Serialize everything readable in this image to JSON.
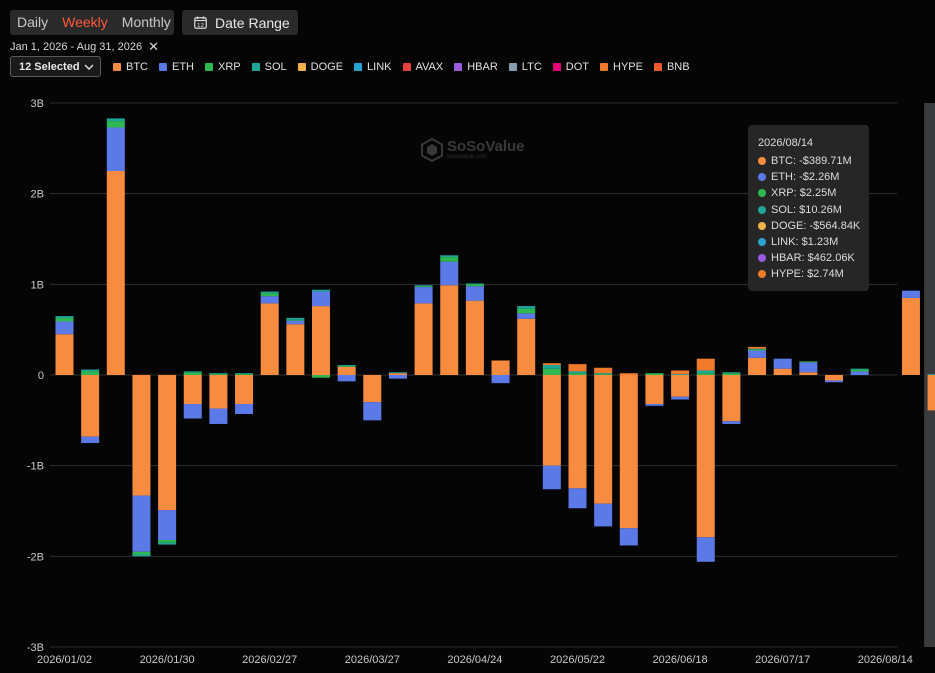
{
  "toolbar": {
    "periods": [
      "Daily",
      "Weekly",
      "Monthly"
    ],
    "active_period": "Weekly",
    "date_range_label": "Date Range",
    "date_range_text": "Jan 1, 2026 - Aug 31, 2026",
    "selection_label": "12 Selected",
    "accent_color": "#ff5a3c"
  },
  "watermark": {
    "name": "SoSoValue",
    "sub": "sosovalue.com"
  },
  "tooltip": {
    "date": "2026/08/14",
    "rows": [
      {
        "label": "BTC: -$389.71M",
        "color": "#f78c40"
      },
      {
        "label": "ETH: -$2.26M",
        "color": "#5b7ae8"
      },
      {
        "label": "XRP: $2.25M",
        "color": "#2fb84f"
      },
      {
        "label": "SOL: $10.26M",
        "color": "#1fa79a"
      },
      {
        "label": "DOGE: -$564.84K",
        "color": "#f2b24a"
      },
      {
        "label": "LINK: $1.23M",
        "color": "#27a3d0"
      },
      {
        "label": "HBAR: $462.06K",
        "color": "#9b59e0"
      },
      {
        "label": "HYPE: $2.74M",
        "color": "#f07a2a"
      }
    ]
  },
  "chart_data": {
    "type": "bar",
    "stacked": true,
    "ylim": [
      -3000000000,
      3000000000
    ],
    "yticks": [
      3000000000,
      2000000000,
      1000000000,
      0,
      -1000000000,
      -2000000000,
      -3000000000
    ],
    "ytick_labels": [
      "3B",
      "2B",
      "1B",
      "0",
      "-1B",
      "-2B",
      "-3B"
    ],
    "xtick_labels": [
      "2026/01/02",
      "2026/01/30",
      "2026/02/27",
      "2026/03/27",
      "2026/04/24",
      "2026/05/22",
      "2026/06/18",
      "2026/07/17",
      "2026/08/14"
    ],
    "xtick_every": 4,
    "highlighted_index": 34,
    "grid": true,
    "legend_position": "top-left",
    "legend": [
      {
        "name": "BTC",
        "color": "#f78c40"
      },
      {
        "name": "ETH",
        "color": "#5b7ae8"
      },
      {
        "name": "XRP",
        "color": "#2fb84f"
      },
      {
        "name": "SOL",
        "color": "#1fa79a"
      },
      {
        "name": "DOGE",
        "color": "#f2b24a"
      },
      {
        "name": "LINK",
        "color": "#27a3d0"
      },
      {
        "name": "AVAX",
        "color": "#e84142"
      },
      {
        "name": "HBAR",
        "color": "#9b59e0"
      },
      {
        "name": "LTC",
        "color": "#8a9bb0"
      },
      {
        "name": "DOT",
        "color": "#e6007a"
      },
      {
        "name": "HYPE",
        "color": "#f07a2a"
      },
      {
        "name": "BNB",
        "color": "#f35b2a"
      }
    ],
    "series": [
      {
        "name": "BTC",
        "color": "#f78c40",
        "values": [
          450000000.0,
          -680000000.0,
          2250000000.0,
          -1330000000.0,
          -1490000000.0,
          -320000000.0,
          -370000000.0,
          -320000000.0,
          790000000.0,
          560000000.0,
          760000000.0,
          90000000.0,
          -300000000.0,
          20000000.0,
          790000000.0,
          990000000.0,
          820000000.0,
          160000000.0,
          620000000.0,
          -1000000000.0,
          -1250000000.0,
          -1420000000.0,
          -1690000000.0,
          -320000000.0,
          -240000000.0,
          -1790000000.0,
          -510000000.0,
          190000000.0,
          70000000.0,
          30000000.0,
          -60000000.0,
          0,
          0,
          850000000.0,
          -390000000.0
        ]
      },
      {
        "name": "ETH",
        "color": "#5b7ae8",
        "values": [
          140000000.0,
          -70000000.0,
          480000000.0,
          -620000000.0,
          -330000000.0,
          -160000000.0,
          -170000000.0,
          -110000000.0,
          80000000.0,
          40000000.0,
          160000000.0,
          -70000000.0,
          -200000000.0,
          -40000000.0,
          180000000.0,
          260000000.0,
          160000000.0,
          -90000000.0,
          60000000.0,
          -260000000.0,
          -220000000.0,
          -250000000.0,
          -190000000.0,
          -20000000.0,
          -30000000.0,
          -270000000.0,
          -30000000.0,
          80000000.0,
          110000000.0,
          110000000.0,
          -20000000.0,
          40000000.0,
          0,
          80000000.0,
          0
        ]
      },
      {
        "name": "XRP",
        "color": "#2fb84f",
        "values": [
          40000000.0,
          40000000.0,
          70000000.0,
          -30000000.0,
          -30000000.0,
          30000000.0,
          10000000.0,
          10000000.0,
          30000000.0,
          10000000.0,
          -30000000.0,
          10000000.0,
          0,
          0,
          10000000.0,
          50000000.0,
          20000000.0,
          0,
          50000000.0,
          70000000.0,
          20000000.0,
          10000000.0,
          0,
          20000000.0,
          0,
          20000000.0,
          20000000.0,
          10000000.0,
          0,
          10000000.0,
          0,
          20000000.0,
          0,
          0,
          0
        ]
      },
      {
        "name": "SOL",
        "color": "#1fa79a",
        "values": [
          20000000.0,
          20000000.0,
          30000000.0,
          -20000000.0,
          -20000000.0,
          10000000.0,
          10000000.0,
          10000000.0,
          20000000.0,
          20000000.0,
          20000000.0,
          10000000.0,
          0,
          10000000.0,
          10000000.0,
          20000000.0,
          10000000.0,
          0,
          30000000.0,
          40000000.0,
          20000000.0,
          10000000.0,
          0,
          0,
          10000000.0,
          30000000.0,
          10000000.0,
          10000000.0,
          0,
          0,
          0,
          10000000.0,
          0,
          0,
          10000000.0
        ]
      },
      {
        "name": "HYPE",
        "color": "#f07a2a",
        "values": [
          0,
          0,
          0,
          0,
          0,
          0,
          0,
          0,
          0,
          0,
          0,
          0,
          0,
          0,
          0,
          0,
          0,
          0,
          0,
          20000000.0,
          80000000.0,
          60000000.0,
          20000000.0,
          0,
          40000000.0,
          130000000.0,
          0,
          20000000.0,
          0,
          0,
          0,
          0,
          0,
          0,
          0
        ]
      }
    ]
  }
}
